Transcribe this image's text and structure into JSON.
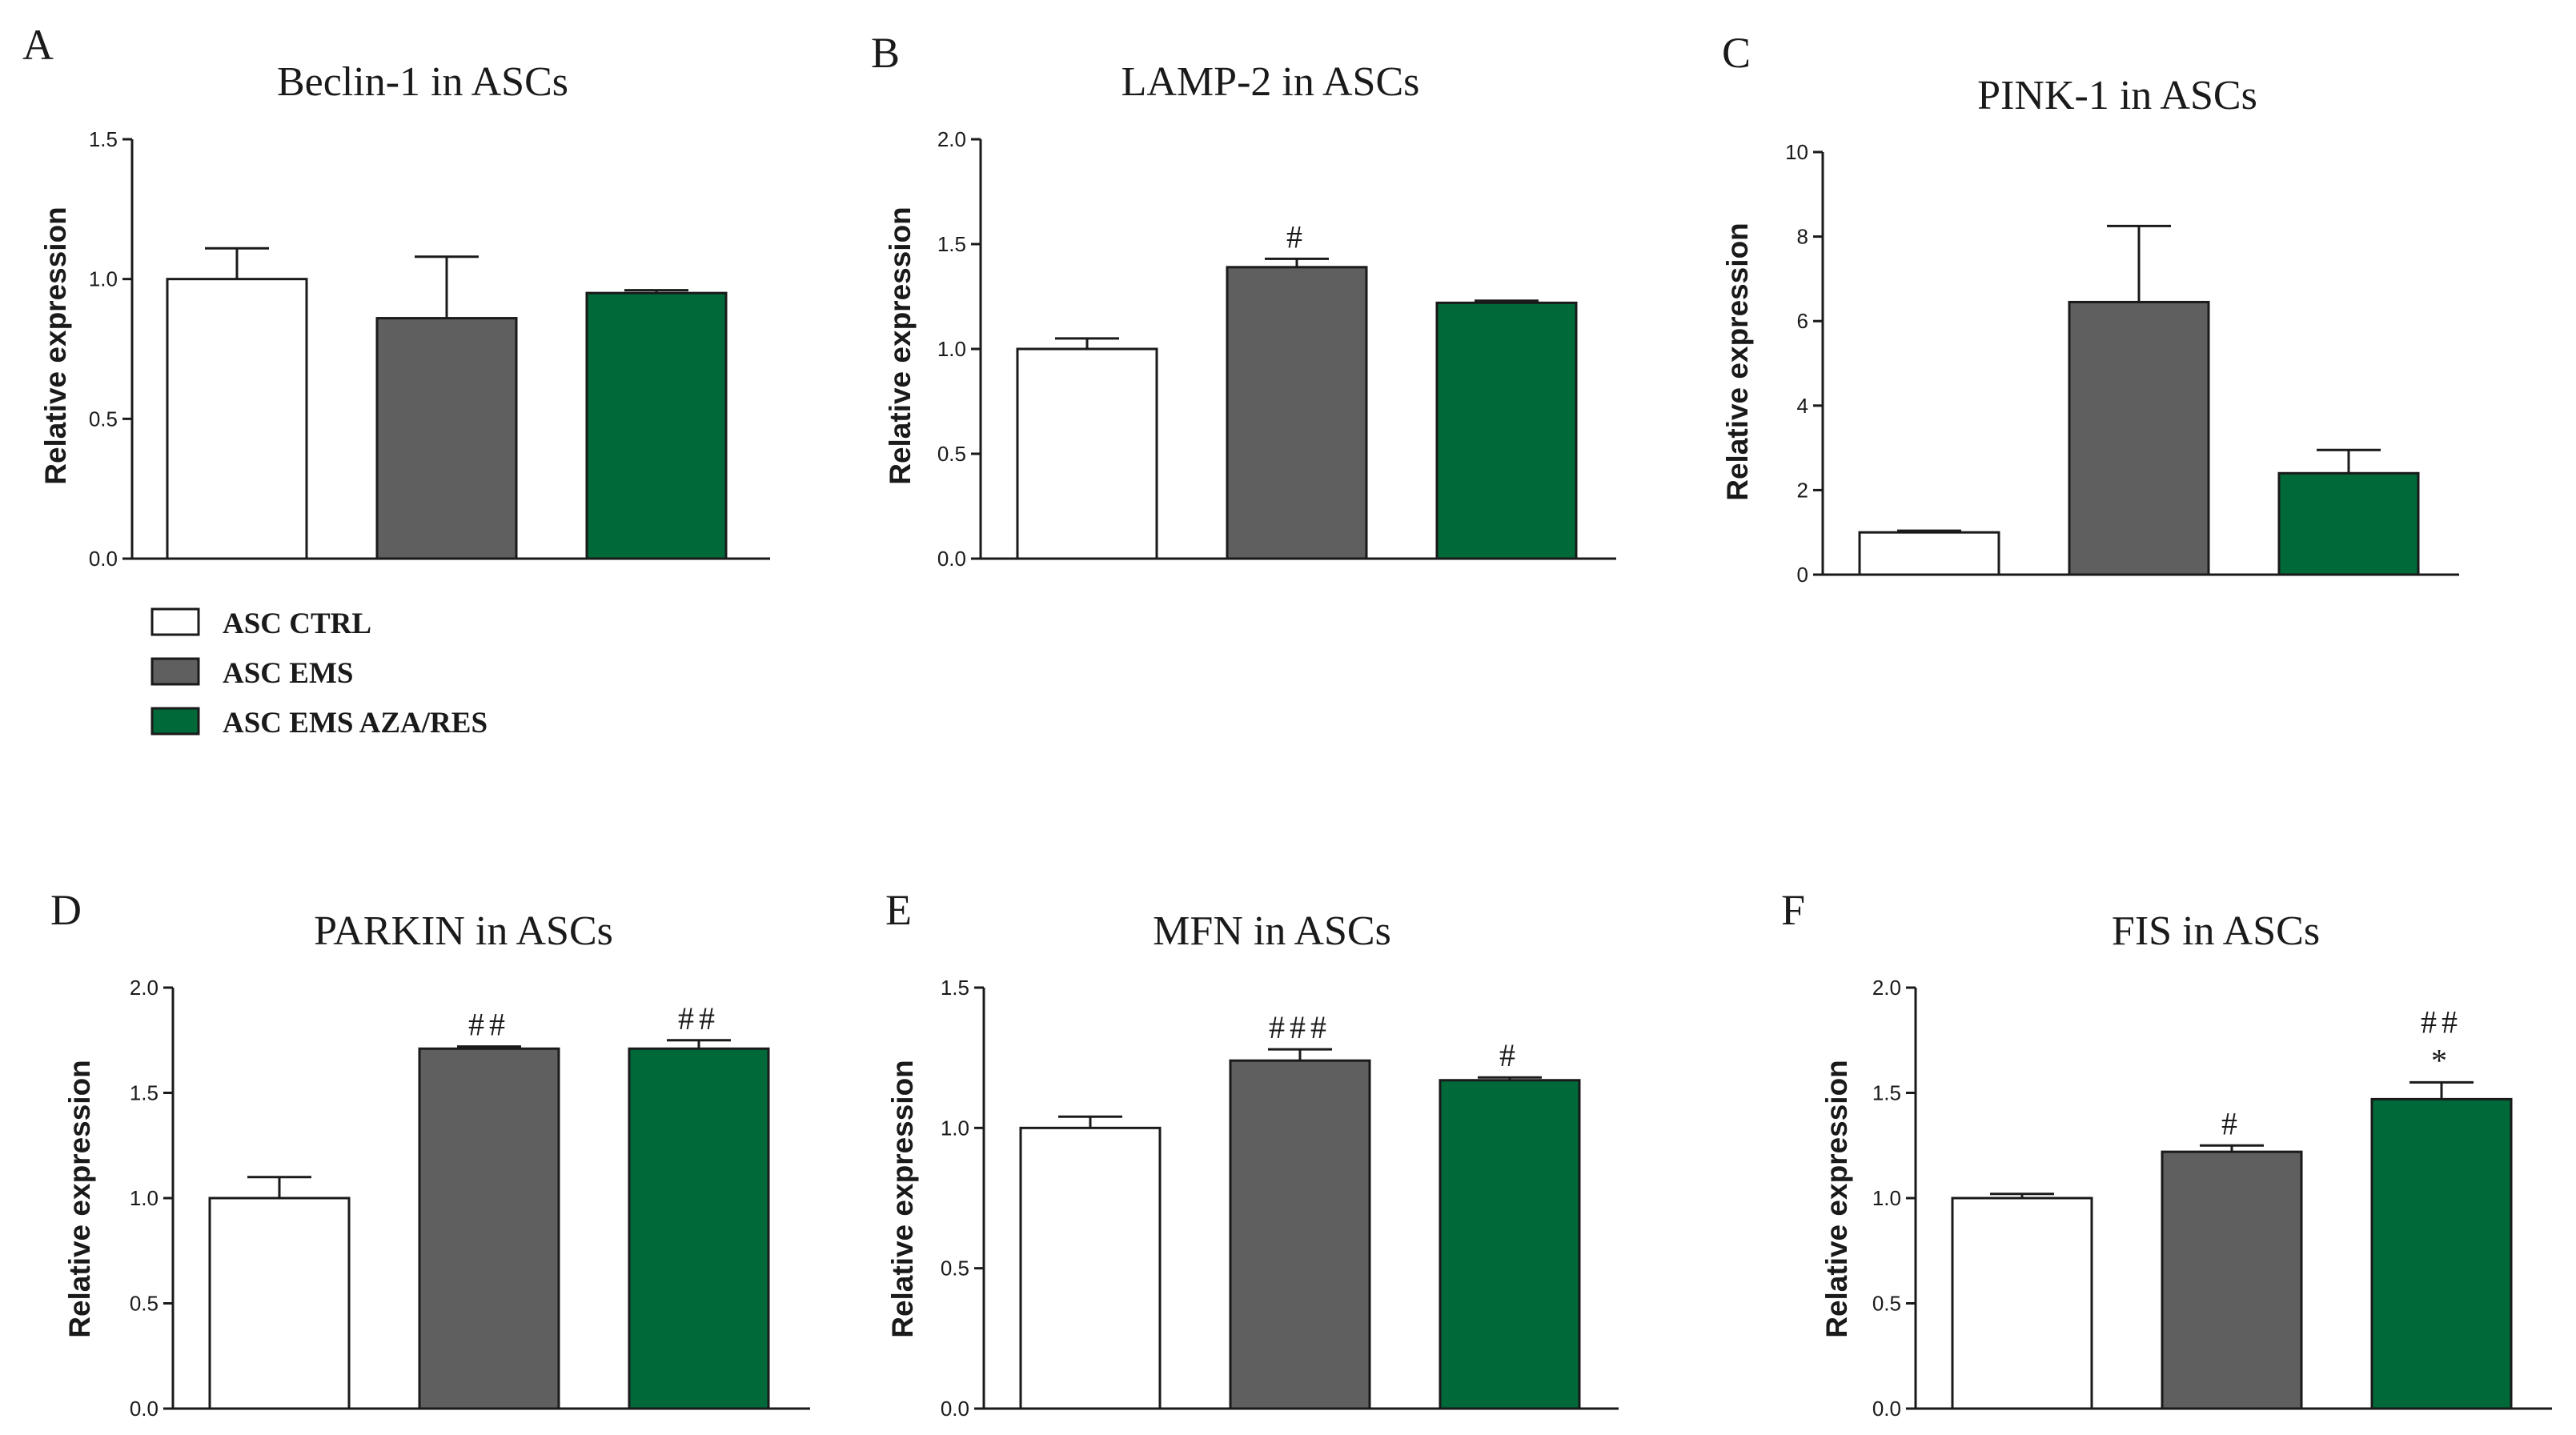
{
  "colors": {
    "ASC CTRL": "#ffffff",
    "ASC EMS": "#5f5f5f",
    "ASC EMS AZA/RES": "#00693a",
    "stroke": "#1a1a1a"
  },
  "legend": {
    "items": [
      {
        "label": "ASC CTRL"
      },
      {
        "label": "ASC EMS"
      },
      {
        "label": "ASC EMS AZA/RES"
      }
    ]
  },
  "chart_data": [
    {
      "panel": "A",
      "type": "bar",
      "title": "Beclin-1 in ASCs",
      "xlabel": "",
      "ylabel": "Relative expression",
      "ylim": [
        0,
        1.5
      ],
      "yticks": [
        "0.0",
        "0.5",
        "1.0",
        "1.5"
      ],
      "categories": [
        "ASC CTRL",
        "ASC EMS",
        "ASC EMS AZA/RES"
      ],
      "values": [
        1.0,
        0.86,
        0.95
      ],
      "errors": [
        0.11,
        0.22,
        0.01
      ],
      "annotations": [
        [],
        [],
        []
      ]
    },
    {
      "panel": "B",
      "type": "bar",
      "title": "LAMP-2 in ASCs",
      "xlabel": "",
      "ylabel": "Relative expression",
      "ylim": [
        0,
        2.0
      ],
      "yticks": [
        "0.0",
        "0.5",
        "1.0",
        "1.5",
        "2.0"
      ],
      "categories": [
        "ASC CTRL",
        "ASC EMS",
        "ASC EMS AZA/RES"
      ],
      "values": [
        1.0,
        1.39,
        1.22
      ],
      "errors": [
        0.05,
        0.04,
        0.01
      ],
      "annotations": [
        [],
        [
          "#"
        ],
        []
      ]
    },
    {
      "panel": "C",
      "type": "bar",
      "title": "PINK-1 in ASCs",
      "xlabel": "",
      "ylabel": "Relative expression",
      "ylim": [
        0,
        10
      ],
      "yticks": [
        "0",
        "2",
        "4",
        "6",
        "8",
        "10"
      ],
      "categories": [
        "ASC CTRL",
        "ASC EMS",
        "ASC EMS AZA/RES"
      ],
      "values": [
        1.0,
        6.45,
        2.4
      ],
      "errors": [
        0.04,
        1.8,
        0.55
      ],
      "annotations": [
        [],
        [],
        []
      ]
    },
    {
      "panel": "D",
      "type": "bar",
      "title": "PARKIN in ASCs",
      "xlabel": "",
      "ylabel": "Relative expression",
      "ylim": [
        0,
        2.0
      ],
      "yticks": [
        "0.0",
        "0.5",
        "1.0",
        "1.5",
        "2.0"
      ],
      "categories": [
        "ASC CTRL",
        "ASC EMS",
        "ASC EMS AZA/RES"
      ],
      "values": [
        1.0,
        1.71,
        1.71
      ],
      "errors": [
        0.1,
        0.01,
        0.04
      ],
      "annotations": [
        [],
        [
          "##"
        ],
        [
          "##"
        ]
      ]
    },
    {
      "panel": "E",
      "type": "bar",
      "title": "MFN in ASCs",
      "xlabel": "",
      "ylabel": "Relative expression",
      "ylim": [
        0,
        1.5
      ],
      "yticks": [
        "0.0",
        "0.5",
        "1.0",
        "1.5"
      ],
      "categories": [
        "ASC CTRL",
        "ASC EMS",
        "ASC EMS AZA/RES"
      ],
      "values": [
        1.0,
        1.24,
        1.17
      ],
      "errors": [
        0.04,
        0.04,
        0.01
      ],
      "annotations": [
        [],
        [
          "###"
        ],
        [
          "#"
        ]
      ]
    },
    {
      "panel": "F",
      "type": "bar",
      "title": "FIS in ASCs",
      "xlabel": "",
      "ylabel": "Relative expression",
      "ylim": [
        0,
        2.0
      ],
      "yticks": [
        "0.0",
        "0.5",
        "1.0",
        "1.5",
        "2.0"
      ],
      "categories": [
        "ASC CTRL",
        "ASC EMS",
        "ASC EMS AZA/RES"
      ],
      "values": [
        1.0,
        1.22,
        1.47
      ],
      "errors": [
        0.02,
        0.03,
        0.08
      ],
      "annotations": [
        [],
        [
          "#"
        ],
        [
          "*",
          "##"
        ]
      ]
    }
  ]
}
